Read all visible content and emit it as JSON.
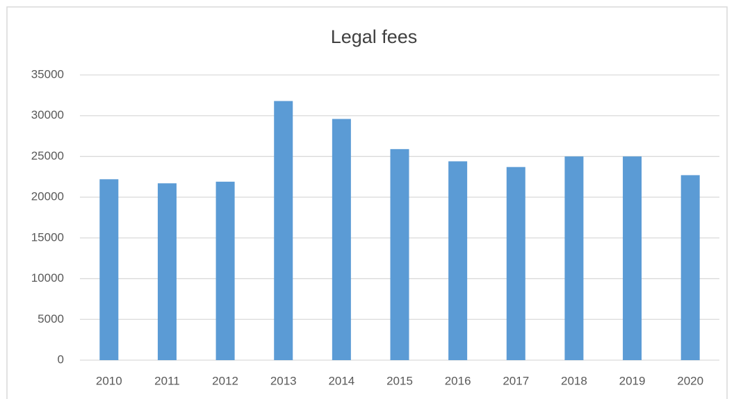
{
  "chart_data": {
    "type": "bar",
    "title": "Legal fees",
    "categories": [
      "2010",
      "2011",
      "2012",
      "2013",
      "2014",
      "2015",
      "2016",
      "2017",
      "2018",
      "2019",
      "2020"
    ],
    "values": [
      22200,
      21700,
      21900,
      31800,
      29600,
      25900,
      24400,
      23700,
      25000,
      25000,
      22700
    ],
    "color": "#5b9bd5",
    "ylim": [
      0,
      35000
    ],
    "yticks": [
      0,
      5000,
      10000,
      15000,
      20000,
      25000,
      30000,
      35000
    ],
    "grid": true
  }
}
